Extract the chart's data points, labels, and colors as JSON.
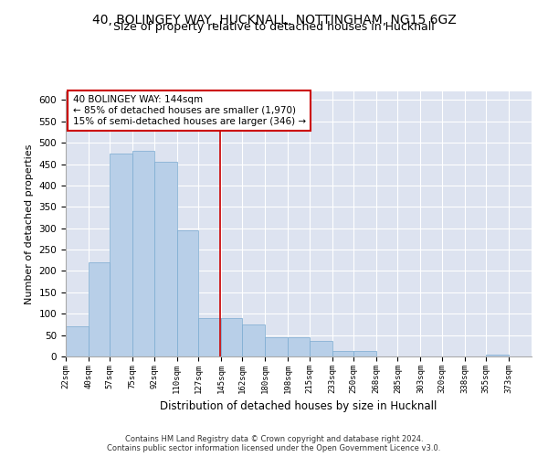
{
  "title_line1": "40, BOLINGEY WAY, HUCKNALL, NOTTINGHAM, NG15 6GZ",
  "title_line2": "Size of property relative to detached houses in Hucknall",
  "xlabel": "Distribution of detached houses by size in Hucknall",
  "ylabel": "Number of detached properties",
  "footer_line1": "Contains HM Land Registry data © Crown copyright and database right 2024.",
  "footer_line2": "Contains public sector information licensed under the Open Government Licence v3.0.",
  "annotation_title": "40 BOLINGEY WAY: 144sqm",
  "annotation_line1": "← 85% of detached houses are smaller (1,970)",
  "annotation_line2": "15% of semi-detached houses are larger (346) →",
  "property_size": 144,
  "bar_color": "#b8cfe8",
  "bar_edge_color": "#7aaad0",
  "vline_color": "#cc0000",
  "annotation_box_color": "#cc0000",
  "background_color": "#dde3f0",
  "categories": [
    "22sqm",
    "40sqm",
    "57sqm",
    "75sqm",
    "92sqm",
    "110sqm",
    "127sqm",
    "145sqm",
    "162sqm",
    "180sqm",
    "198sqm",
    "215sqm",
    "233sqm",
    "250sqm",
    "268sqm",
    "285sqm",
    "303sqm",
    "320sqm",
    "338sqm",
    "355sqm",
    "373sqm"
  ],
  "bin_edges": [
    22,
    40,
    57,
    75,
    92,
    110,
    127,
    145,
    162,
    180,
    198,
    215,
    233,
    250,
    268,
    285,
    303,
    320,
    338,
    355,
    373
  ],
  "values": [
    70,
    220,
    475,
    480,
    455,
    295,
    90,
    90,
    75,
    45,
    45,
    37,
    13,
    13,
    0,
    0,
    0,
    0,
    0,
    5
  ],
  "ylim": [
    0,
    620
  ],
  "yticks": [
    0,
    50,
    100,
    150,
    200,
    250,
    300,
    350,
    400,
    450,
    500,
    550,
    600
  ],
  "grid_color": "#ffffff",
  "title_fontsize": 10,
  "subtitle_fontsize": 9
}
